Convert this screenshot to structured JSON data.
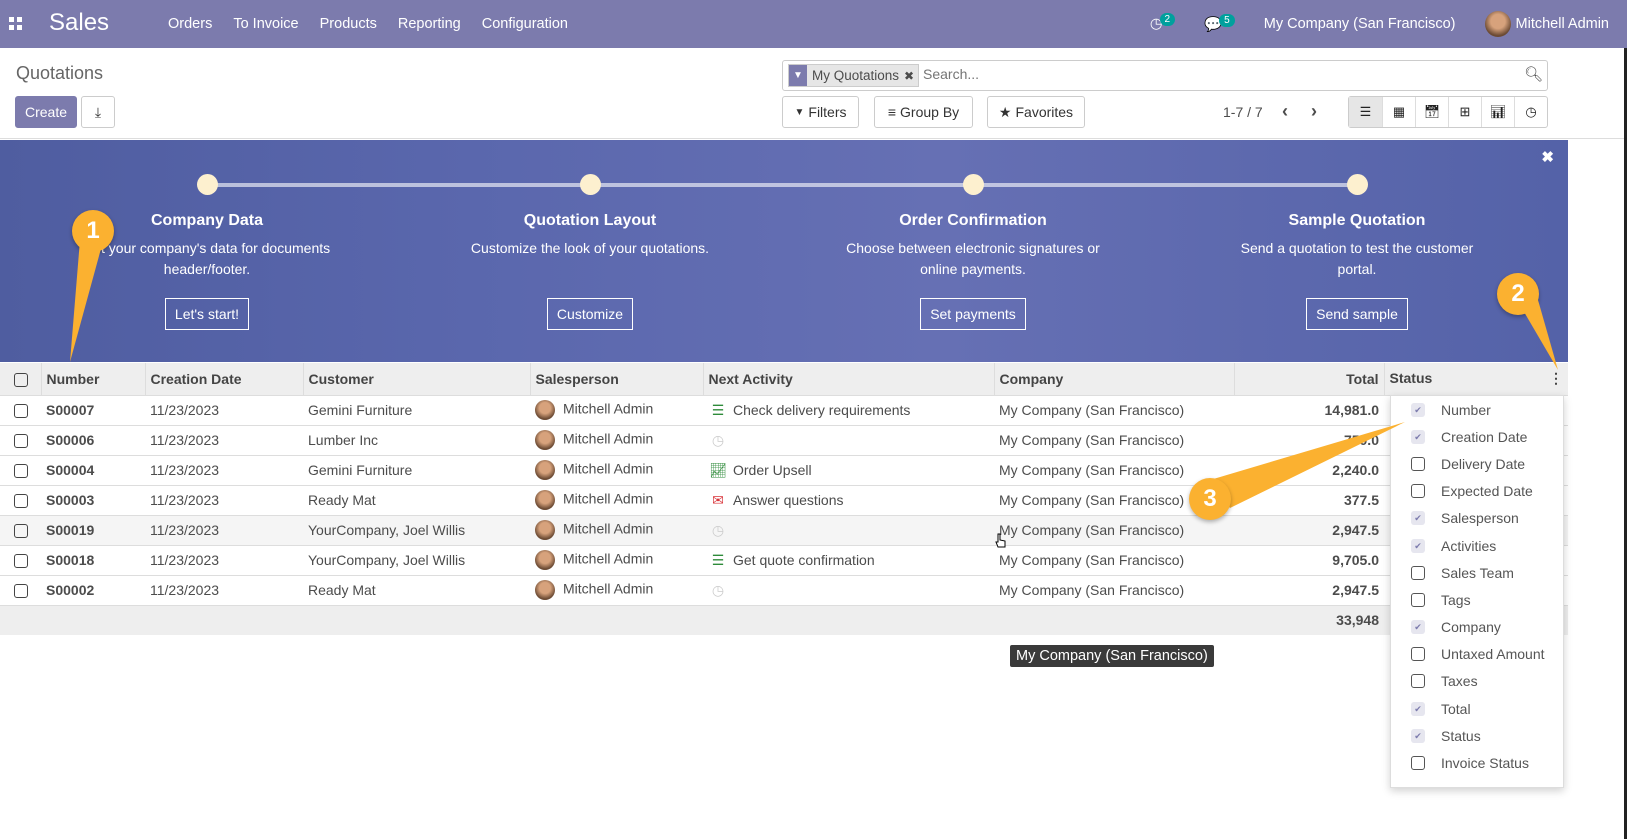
{
  "nav": {
    "brand": "Sales",
    "menu": [
      "Orders",
      "To Invoice",
      "Products",
      "Reporting",
      "Configuration"
    ],
    "activity_count": "2",
    "message_count": "5",
    "company": "My Company (San Francisco)",
    "user": "Mitchell Admin"
  },
  "control": {
    "title": "Quotations",
    "create": "Create",
    "facet": "My Quotations",
    "search_placeholder": "Search...",
    "filters": "Filters",
    "group_by": "Group By",
    "favorites": "Favorites",
    "pager": "1-7 / 7"
  },
  "banner": {
    "steps": [
      {
        "title": "Company Data",
        "desc": "Set your company's data for documents header/footer.",
        "button": "Let's start!"
      },
      {
        "title": "Quotation Layout",
        "desc": "Customize the look of your quotations.",
        "button": "Customize"
      },
      {
        "title": "Order Confirmation",
        "desc": "Choose between electronic signatures or online payments.",
        "button": "Set payments"
      },
      {
        "title": "Sample Quotation",
        "desc": "Send a quotation to test the customer portal.",
        "button": "Send sample"
      }
    ]
  },
  "callouts": [
    "1",
    "2",
    "3"
  ],
  "table": {
    "headers": [
      "Number",
      "Creation Date",
      "Customer",
      "Salesperson",
      "Next Activity",
      "Company",
      "Total",
      "Status"
    ],
    "rows": [
      {
        "number": "S00007",
        "date": "11/23/2023",
        "customer": "Gemini Furniture",
        "salesperson": "Mitchell Admin",
        "activity": "Check delivery requirements",
        "activity_icon": "tasks-icon",
        "company": "My Company (San Francisco)",
        "total": "14,981.0"
      },
      {
        "number": "S00006",
        "date": "11/23/2023",
        "customer": "Lumber Inc",
        "salesperson": "Mitchell Admin",
        "activity": "",
        "activity_icon": "clock-icon",
        "company": "My Company (San Francisco)",
        "total": "750.0"
      },
      {
        "number": "S00004",
        "date": "11/23/2023",
        "customer": "Gemini Furniture",
        "salesperson": "Mitchell Admin",
        "activity": "Order Upsell",
        "activity_icon": "line-chart-icon",
        "company": "My Company (San Francisco)",
        "total": "2,240.0"
      },
      {
        "number": "S00003",
        "date": "11/23/2023",
        "customer": "Ready Mat",
        "salesperson": "Mitchell Admin",
        "activity": "Answer questions",
        "activity_icon": "envelope-icon",
        "company": "My Company (San Francisco)",
        "total": "377.5"
      },
      {
        "number": "S00019",
        "date": "11/23/2023",
        "customer": "YourCompany, Joel Willis",
        "salesperson": "Mitchell Admin",
        "activity": "",
        "activity_icon": "clock-icon",
        "company": "My Company (San Francisco)",
        "total": "2,947.5"
      },
      {
        "number": "S00018",
        "date": "11/23/2023",
        "customer": "YourCompany, Joel Willis",
        "salesperson": "Mitchell Admin",
        "activity": "Get quote confirmation",
        "activity_icon": "tasks-icon",
        "company": "My Company (San Francisco)",
        "total": "9,705.0"
      },
      {
        "number": "S00002",
        "date": "11/23/2023",
        "customer": "Ready Mat",
        "salesperson": "Mitchell Admin",
        "activity": "",
        "activity_icon": "clock-icon",
        "company": "My Company (San Francisco)",
        "total": "2,947.5"
      }
    ],
    "sum": "33,948"
  },
  "columns_menu": [
    {
      "label": "Number",
      "checked": true
    },
    {
      "label": "Creation Date",
      "checked": true
    },
    {
      "label": "Delivery Date",
      "checked": false
    },
    {
      "label": "Expected Date",
      "checked": false
    },
    {
      "label": "Salesperson",
      "checked": true
    },
    {
      "label": "Activities",
      "checked": true
    },
    {
      "label": "Sales Team",
      "checked": false
    },
    {
      "label": "Tags",
      "checked": false
    },
    {
      "label": "Company",
      "checked": true
    },
    {
      "label": "Untaxed Amount",
      "checked": false
    },
    {
      "label": "Taxes",
      "checked": false
    },
    {
      "label": "Total",
      "checked": true
    },
    {
      "label": "Status",
      "checked": true
    },
    {
      "label": "Invoice Status",
      "checked": false
    }
  ],
  "tooltip": "My Company (San Francisco)"
}
